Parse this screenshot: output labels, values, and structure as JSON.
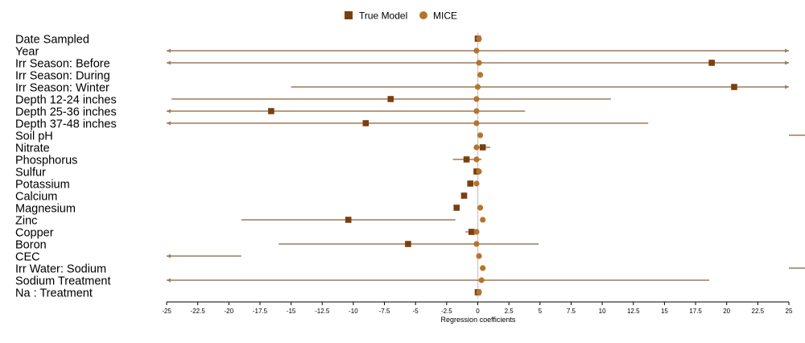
{
  "chart_data": {
    "type": "scatter",
    "title": "",
    "xlabel": "Regression coefficients",
    "ylabel": "",
    "xlim": [
      -25,
      25
    ],
    "xticks": [
      "-25",
      "-22.5",
      "-20",
      "-17.5",
      "-15",
      "-12.5",
      "-10",
      "-7.5",
      "-5",
      "-2.5",
      "0",
      "2.5",
      "5",
      "7.5",
      "10",
      "12.5",
      "15",
      "17.5",
      "20",
      "22.5",
      "25"
    ],
    "grid": false,
    "legend_position": "top-center",
    "categories": [
      "Date Sampled",
      "Year",
      "Irr Season: Before",
      "Irr Season: During",
      "Irr Season: Winter",
      "Depth 12-24 inches",
      "Depth 25-36 inches",
      "Depth 37-48 inches",
      "Soil pH",
      "Nitrate",
      "Phosphorus",
      "Sulfur",
      "Potassium",
      "Calcium",
      "Magnesium",
      "Zinc",
      "Copper",
      "Boron",
      "CEC",
      "Irr Water: Sodium",
      "Sodium Treatment",
      "Na : Treatment"
    ],
    "series": [
      {
        "name": "True Model",
        "color": "#7b3f0e",
        "marker": "square",
        "points": [
          {
            "y": "Date Sampled",
            "x": 0.0,
            "lo": null,
            "hi": null
          },
          {
            "y": "Irr Season: Before",
            "x": 18.8,
            "lo": null,
            "hi": null
          },
          {
            "y": "Irr Season: Winter",
            "x": 20.6,
            "lo": null,
            "hi": null
          },
          {
            "y": "Depth 12-24 inches",
            "x": -7.0,
            "lo": null,
            "hi": null
          },
          {
            "y": "Depth 25-36 inches",
            "x": -16.6,
            "lo": null,
            "hi": null
          },
          {
            "y": "Depth 37-48 inches",
            "x": -9.0,
            "lo": null,
            "hi": null
          },
          {
            "y": "Nitrate",
            "x": 0.4,
            "lo": -0.1,
            "hi": 1.0
          },
          {
            "y": "Phosphorus",
            "x": -0.9,
            "lo": -2.0,
            "hi": 0.3
          },
          {
            "y": "Sulfur",
            "x": -0.1,
            "lo": null,
            "hi": null
          },
          {
            "y": "Potassium",
            "x": -0.6,
            "lo": null,
            "hi": null
          },
          {
            "y": "Calcium",
            "x": -1.1,
            "lo": null,
            "hi": null
          },
          {
            "y": "Magnesium",
            "x": -1.7,
            "lo": null,
            "hi": null
          },
          {
            "y": "Zinc",
            "x": -10.4,
            "lo": -19.0,
            "hi": -1.8
          },
          {
            "y": "Copper",
            "x": -0.5,
            "lo": -1.0,
            "hi": 0.0
          },
          {
            "y": "Boron",
            "x": -5.6,
            "lo": null,
            "hi": null
          },
          {
            "y": "Na : Treatment",
            "x": 0.0,
            "lo": null,
            "hi": null
          }
        ]
      },
      {
        "name": "MICE",
        "color": "#b8732a",
        "marker": "circle",
        "points": [
          {
            "y": "Date Sampled",
            "x": 0.1,
            "lo": null,
            "hi": null
          },
          {
            "y": "Year",
            "x": -0.1,
            "lo": -25.0,
            "hi": 25.0,
            "arrow_lo": true,
            "arrow_hi": true
          },
          {
            "y": "Irr Season: Before",
            "x": 0.1,
            "lo": -25.0,
            "hi": 25.0,
            "arrow_lo": true,
            "arrow_hi": true
          },
          {
            "y": "Irr Season: During",
            "x": 0.2,
            "lo": null,
            "hi": null
          },
          {
            "y": "Irr Season: Winter",
            "x": 0.0,
            "lo": -15.0,
            "hi": 25.0,
            "arrow_hi": true
          },
          {
            "y": "Depth 12-24 inches",
            "x": -0.1,
            "lo": -24.6,
            "hi": 10.7
          },
          {
            "y": "Depth 25-36 inches",
            "x": -0.1,
            "lo": -25.0,
            "hi": 3.8,
            "arrow_lo": true
          },
          {
            "y": "Depth 37-48 inches",
            "x": -0.1,
            "lo": -25.0,
            "hi": 13.7,
            "arrow_lo": true
          },
          {
            "y": "Soil pH",
            "x": 0.2,
            "lo": 25.0,
            "hi": 26.3
          },
          {
            "y": "Nitrate",
            "x": -0.1,
            "lo": null,
            "hi": null
          },
          {
            "y": "Phosphorus",
            "x": -0.1,
            "lo": null,
            "hi": null
          },
          {
            "y": "Sulfur",
            "x": 0.1,
            "lo": null,
            "hi": null
          },
          {
            "y": "Potassium",
            "x": -0.1,
            "lo": null,
            "hi": null
          },
          {
            "y": "Magnesium",
            "x": 0.2,
            "lo": null,
            "hi": null
          },
          {
            "y": "Zinc",
            "x": 0.4,
            "lo": null,
            "hi": null
          },
          {
            "y": "Copper",
            "x": -0.1,
            "lo": null,
            "hi": null
          },
          {
            "y": "Boron",
            "x": -0.1,
            "lo": -16.0,
            "hi": 4.9
          },
          {
            "y": "CEC",
            "x": 0.1,
            "lo": -25.0,
            "hi": -19.0,
            "arrow_lo": true
          },
          {
            "y": "Irr Water: Sodium",
            "x": 0.4,
            "lo": 25.0,
            "hi": 26.3
          },
          {
            "y": "Sodium Treatment",
            "x": 0.3,
            "lo": -25.0,
            "hi": 18.6,
            "arrow_lo": true
          },
          {
            "y": "Na : Treatment",
            "x": 0.1,
            "lo": null,
            "hi": null
          }
        ]
      }
    ]
  },
  "style": {
    "zero_line_color": "#cfcfcf",
    "ci_color": "#9c7c5a",
    "axis_color": "#000000"
  }
}
